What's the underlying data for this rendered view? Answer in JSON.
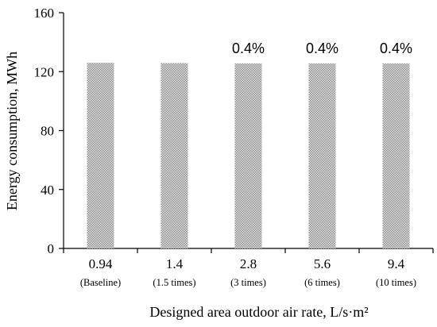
{
  "chart_data": {
    "type": "bar",
    "categories": [
      "0.94",
      "1.4",
      "2.8",
      "5.6",
      "9.4"
    ],
    "category_sublabels": [
      "(Baseline)",
      "(1.5 times)",
      "(3 times)",
      "(6 times)",
      "(10 times)"
    ],
    "values": [
      126,
      125.8,
      125.6,
      125.6,
      125.6
    ],
    "data_labels": [
      "",
      "",
      "0.4%",
      "0.4%",
      "0.4%"
    ],
    "title": "",
    "xlabel": "Designed area outdoor air rate, L/s·m²",
    "ylabel": "Energy consumption, MWh",
    "ylim": [
      0,
      160
    ],
    "yticks": [
      "0",
      "40",
      "80",
      "120",
      "160"
    ],
    "grid": false,
    "bar_fill": "checkered gray"
  }
}
